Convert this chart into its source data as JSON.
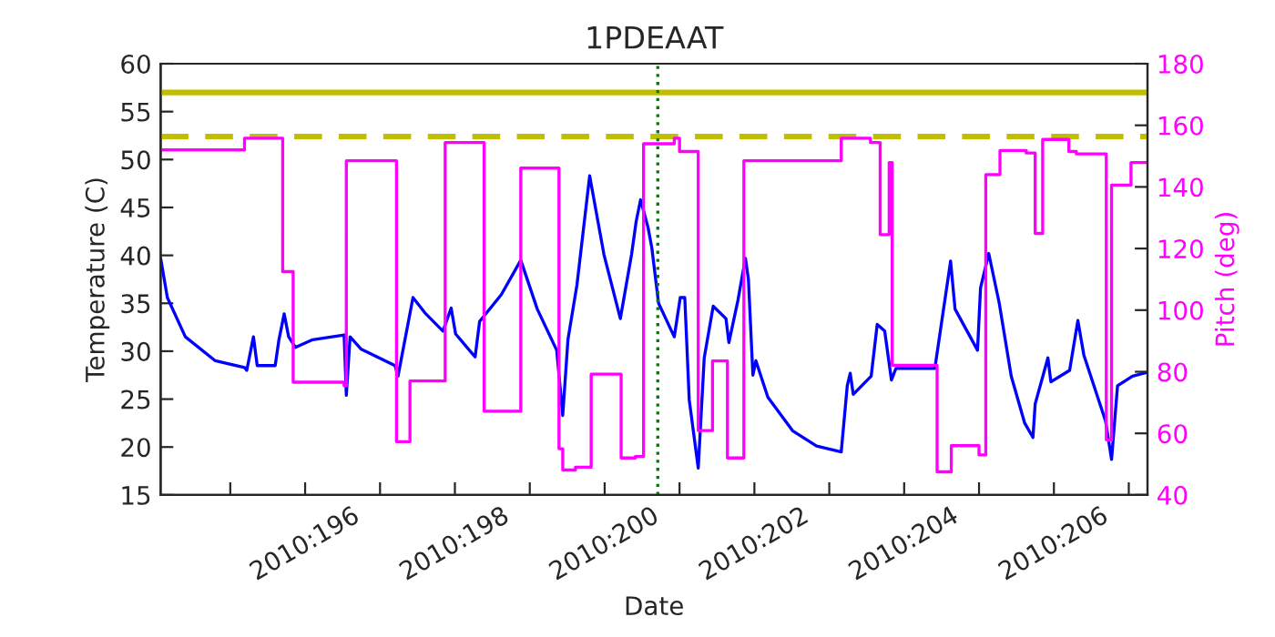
{
  "chart_data": {
    "type": "line",
    "title": "1PDEAAT",
    "xlabel": "Date",
    "ylabel": "Temperature (C)",
    "y2label": "Pitch (deg)",
    "xlim": [
      "2010-07-13T01:41",
      "2010-07-26T06:00"
    ],
    "xticks": [
      {
        "value": "2010-07-14",
        "label": null
      },
      {
        "value": "2010-07-15",
        "label": "2010:196"
      },
      {
        "value": "2010-07-16",
        "label": null
      },
      {
        "value": "2010-07-17",
        "label": "2010:198"
      },
      {
        "value": "2010-07-18",
        "label": null
      },
      {
        "value": "2010-07-19",
        "label": "2010:200"
      },
      {
        "value": "2010-07-20",
        "label": null
      },
      {
        "value": "2010-07-21",
        "label": "2010:202"
      },
      {
        "value": "2010-07-22",
        "label": null
      },
      {
        "value": "2010-07-23",
        "label": "2010:204"
      },
      {
        "value": "2010-07-24",
        "label": null
      },
      {
        "value": "2010-07-25",
        "label": "2010:206"
      },
      {
        "value": "2010-07-26",
        "label": null
      }
    ],
    "ylim": [
      15,
      60
    ],
    "yticks": [
      15,
      20,
      25,
      30,
      35,
      40,
      45,
      50,
      55,
      60
    ],
    "y2lim": [
      40,
      180
    ],
    "y2ticks": [
      40,
      60,
      80,
      100,
      120,
      140,
      160,
      180
    ],
    "grid": false,
    "legend": false,
    "ref_lines": [
      {
        "axis": "y",
        "value": 57,
        "label": null,
        "color": "#bfbf00",
        "line_style": "solid"
      },
      {
        "axis": "y",
        "value": 52.4,
        "label": null,
        "color": "#bfbf00",
        "line_style": "dashed"
      },
      {
        "axis": "x",
        "value": "2010-07-19T17:02",
        "label": null,
        "color": "#008000",
        "line_style": "dotted"
      }
    ],
    "series": [
      {
        "axis": "y",
        "color": "#0000ff",
        "x": [
          "2010-07-13T01:41",
          "2010-07-13T03:50",
          "2010-07-13T09:36",
          "2010-07-13T19:12",
          "2010-07-14T04:34",
          "2010-07-14T05:17",
          "2010-07-14T07:26",
          "2010-07-14T08:38",
          "2010-07-14T14:24",
          "2010-07-14T15:36",
          "2010-07-14T17:17",
          "2010-07-14T18:43",
          "2010-07-14T20:53",
          "2010-07-15T02:24",
          "2010-07-15T12:29",
          "2010-07-15T13:12",
          "2010-07-15T14:24",
          "2010-07-15T18:00",
          "2010-07-16T04:48",
          "2010-07-16T05:46",
          "2010-07-16T10:34",
          "2010-07-16T14:24",
          "2010-07-16T20:10",
          "2010-07-16T22:48",
          "2010-07-17T00:14",
          "2010-07-17T06:29",
          "2010-07-17T07:55",
          "2010-07-17T14:53",
          "2010-07-17T21:07",
          "2010-07-18T02:24",
          "2010-07-18T08:38",
          "2010-07-18T10:34",
          "2010-07-18T12:14",
          "2010-07-18T15:07",
          "2010-07-18T19:12",
          "2010-07-18T23:46",
          "2010-07-19T05:02",
          "2010-07-19T08:38",
          "2010-07-19T10:05",
          "2010-07-19T11:31",
          "2010-07-19T13:55",
          "2010-07-19T15:07",
          "2010-07-19T17:17",
          "2010-07-19T22:19",
          "2010-07-20T00:14",
          "2010-07-20T01:41",
          "2010-07-20T03:07",
          "2010-07-20T06:00",
          "2010-07-20T07:55",
          "2010-07-20T10:48",
          "2010-07-20T14:53",
          "2010-07-20T15:50",
          "2010-07-20T18:43",
          "2010-07-20T21:07",
          "2010-07-20T22:05",
          "2010-07-20T23:31",
          "2010-07-21T00:29",
          "2010-07-21T04:19",
          "2010-07-21T12:14",
          "2010-07-21T19:55",
          "2010-07-22T03:50",
          "2010-07-22T05:46",
          "2010-07-22T06:43",
          "2010-07-22T07:41",
          "2010-07-22T13:26",
          "2010-07-22T15:22",
          "2010-07-22T17:46",
          "2010-07-22T19:55",
          "2010-07-22T21:22",
          "2010-07-23T09:50",
          "2010-07-23T14:53",
          "2010-07-23T16:19",
          "2010-07-23T23:31",
          "2010-07-24T00:29",
          "2010-07-24T03:07",
          "2010-07-24T06:29",
          "2010-07-24T10:19",
          "2010-07-24T14:38",
          "2010-07-24T17:17",
          "2010-07-24T18:00",
          "2010-07-24T22:05",
          "2010-07-24T23:02",
          "2010-07-25T05:02",
          "2010-07-25T07:41",
          "2010-07-25T09:36",
          "2010-07-25T16:34",
          "2010-07-25T18:29",
          "2010-07-25T20:24",
          "2010-07-26T01:12",
          "2010-07-26T06:00"
        ],
        "values": [
          39.7,
          35.6,
          31.5,
          29.0,
          28.3,
          28.0,
          31.5,
          28.5,
          28.5,
          31.2,
          33.9,
          31.5,
          30.4,
          31.2,
          31.7,
          25.4,
          31.5,
          30.2,
          28.5,
          27.4,
          35.6,
          34.0,
          32.1,
          34.5,
          31.8,
          29.4,
          33.1,
          35.9,
          39.5,
          34.4,
          30.1,
          23.3,
          31.2,
          36.9,
          48.3,
          40.1,
          33.4,
          40.1,
          43.5,
          45.8,
          42.9,
          40.8,
          35.0,
          31.5,
          35.6,
          35.6,
          24.9,
          17.8,
          29.3,
          34.7,
          33.4,
          30.9,
          35.3,
          39.7,
          37.5,
          27.5,
          29.0,
          25.2,
          21.7,
          20.1,
          19.5,
          26.4,
          27.7,
          25.5,
          27.4,
          32.8,
          32.1,
          27.0,
          28.2,
          28.2,
          39.4,
          34.4,
          30.1,
          36.6,
          40.2,
          35.0,
          27.4,
          22.5,
          21.0,
          24.5,
          29.3,
          26.8,
          28.0,
          33.2,
          29.6,
          22.7,
          18.7,
          26.4,
          27.4,
          27.8
        ]
      },
      {
        "type": "step",
        "axis": "y2",
        "color": "#ff00ff",
        "x": [
          "2010-07-13T01:41",
          "2010-07-14T04:34",
          "2010-07-14T16:48",
          "2010-07-14T20:10",
          "2010-07-15T12:29",
          "2010-07-15T13:12",
          "2010-07-16T05:17",
          "2010-07-16T09:36",
          "2010-07-16T20:53",
          "2010-07-17T09:22",
          "2010-07-17T21:07",
          "2010-07-18T09:22",
          "2010-07-18T10:34",
          "2010-07-18T14:38",
          "2010-07-18T19:41",
          "2010-07-19T05:17",
          "2010-07-19T09:50",
          "2010-07-19T12:29",
          "2010-07-19T22:19",
          "2010-07-20T00:00",
          "2010-07-20T06:00",
          "2010-07-20T10:34",
          "2010-07-20T15:22",
          "2010-07-20T20:38",
          "2010-07-22T03:50",
          "2010-07-22T13:12",
          "2010-07-22T16:19",
          "2010-07-22T19:12",
          "2010-07-22T20:10",
          "2010-07-23T10:34",
          "2010-07-23T15:07",
          "2010-07-24T00:00",
          "2010-07-24T02:10",
          "2010-07-24T06:43",
          "2010-07-24T15:07",
          "2010-07-24T18:00",
          "2010-07-24T20:24",
          "2010-07-25T04:48",
          "2010-07-25T07:12",
          "2010-07-25T16:48",
          "2010-07-25T18:29",
          "2010-07-26T00:43",
          "2010-07-26T06:00"
        ],
        "values": [
          152.0,
          155.8,
          112.5,
          76.6,
          75.5,
          148.5,
          57.3,
          77.0,
          154.4,
          67.2,
          146.1,
          55.0,
          48.1,
          49.0,
          79.2,
          52.0,
          52.5,
          154.0,
          155.8,
          151.5,
          60.9,
          83.5,
          52.0,
          148.5,
          155.8,
          154.4,
          124.5,
          147.9,
          82.1,
          47.5,
          56.0,
          53.0,
          144.0,
          151.8,
          151.0,
          124.9,
          155.4,
          151.5,
          150.7,
          57.9,
          140.6,
          147.9,
          147.9
        ]
      }
    ]
  }
}
